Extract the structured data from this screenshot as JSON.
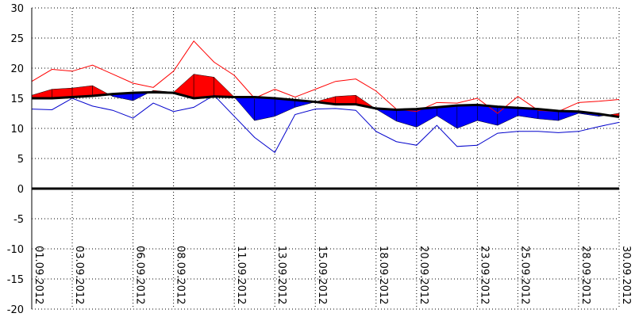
{
  "chart_data": {
    "type": "line",
    "title": "",
    "xlabel": "",
    "ylabel": "",
    "ylim": [
      -20,
      30
    ],
    "yticks": [
      30,
      25,
      20,
      15,
      10,
      5,
      0,
      -5,
      -10,
      -15,
      -20
    ],
    "xlim": [
      "01.09.2012",
      "30.09.2012"
    ],
    "xtick_labels": [
      "01.09.2012",
      "03.09.2012",
      "06.09.2012",
      "08.09.2012",
      "11.09.2012",
      "13.09.2012",
      "15.09.2012",
      "18.09.2012",
      "20.09.2012",
      "23.09.2012",
      "25.09.2012",
      "28.09.2012",
      "30.09.2012"
    ],
    "grid": true,
    "zero_line": true,
    "x": [
      "01.09.2012",
      "02.09.2012",
      "03.09.2012",
      "04.09.2012",
      "05.09.2012",
      "06.09.2012",
      "07.09.2012",
      "08.09.2012",
      "09.09.2012",
      "10.09.2012",
      "11.09.2012",
      "12.09.2012",
      "13.09.2012",
      "14.09.2012",
      "15.09.2012",
      "16.09.2012",
      "17.09.2012",
      "18.09.2012",
      "19.09.2012",
      "20.09.2012",
      "21.09.2012",
      "22.09.2012",
      "23.09.2012",
      "24.09.2012",
      "25.09.2012",
      "26.09.2012",
      "27.09.2012",
      "28.09.2012",
      "29.09.2012",
      "30.09.2012"
    ],
    "series": [
      {
        "role": "max",
        "color": "#ff0000",
        "values": [
          17.8,
          19.8,
          19.5,
          20.5,
          19.0,
          17.5,
          16.8,
          19.5,
          24.5,
          21.0,
          18.8,
          15.0,
          16.5,
          15.2,
          16.5,
          17.8,
          18.2,
          16.2,
          13.2,
          12.8,
          14.3,
          14.2,
          15.0,
          12.5,
          15.3,
          13.0,
          12.8,
          14.3,
          14.5,
          14.8
        ]
      },
      {
        "role": "mean",
        "color": "#ff0000",
        "values": [
          15.5,
          16.5,
          16.7,
          17.1,
          15.3,
          14.6,
          16.3,
          16.0,
          19.0,
          18.5,
          15.2,
          11.3,
          12.0,
          13.5,
          14.4,
          15.3,
          15.5,
          13.2,
          11.2,
          10.2,
          12.1,
          10.0,
          11.3,
          10.5,
          12.1,
          11.6,
          11.3,
          12.5,
          12.0,
          12.5
        ]
      },
      {
        "role": "normal",
        "color": "#000000",
        "values": [
          15.0,
          15.0,
          15.2,
          15.4,
          15.7,
          15.9,
          16.0,
          15.9,
          15.0,
          15.3,
          15.2,
          15.2,
          15.0,
          14.7,
          14.4,
          14.0,
          14.0,
          13.3,
          13.1,
          13.2,
          13.5,
          13.8,
          13.9,
          13.6,
          13.4,
          13.2,
          12.9,
          12.8,
          12.4,
          11.9
        ]
      },
      {
        "role": "min",
        "color": "#0000cc",
        "values": [
          13.2,
          13.1,
          15.0,
          13.7,
          13.0,
          11.7,
          14.2,
          12.8,
          13.5,
          15.5,
          12.0,
          8.5,
          6.0,
          12.3,
          13.2,
          13.3,
          13.0,
          9.5,
          7.8,
          7.2,
          10.5,
          7.0,
          7.2,
          9.2,
          9.5,
          9.5,
          9.3,
          9.5,
          10.3,
          11.0
        ]
      }
    ],
    "colors": {
      "above": "#ff0000",
      "below": "#0000ff",
      "grid": "#000000"
    }
  }
}
